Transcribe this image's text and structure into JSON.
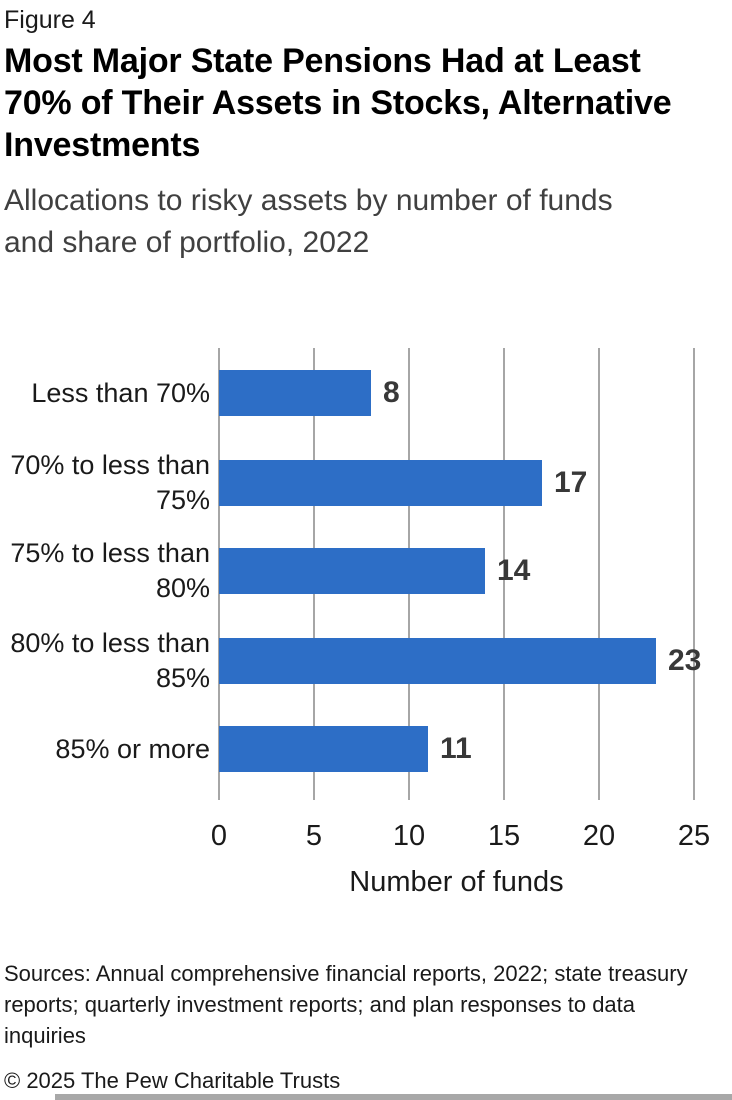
{
  "figure_label": "Figure 4",
  "header": {
    "title_lines": [
      "Most Major State Pensions Had at Least",
      "70% of Their Assets in Stocks, Alternative",
      "Investments"
    ],
    "subtitle_lines": [
      "Allocations to risky assets by number of funds",
      "and share of portfolio, 2022"
    ]
  },
  "chart_data": {
    "type": "bar",
    "orientation": "horizontal",
    "categories": [
      "Less than 70%",
      "70% to less than 75%",
      "75% to less than 80%",
      "80% to less than 85%",
      "85% or more"
    ],
    "values": [
      8,
      17,
      14,
      23,
      11
    ],
    "xlabel": "Number of funds",
    "xticks": [
      0,
      5,
      10,
      15,
      20,
      25
    ],
    "xlim": [
      0,
      25
    ],
    "grid": "vertical gridlines",
    "legend": "none",
    "bar_color": "#2D6EC6",
    "gridline_color": "#A6A6A6",
    "value_label_color": "#383838"
  },
  "footer": {
    "sources_lines": [
      "Sources: Annual comprehensive financial reports, 2022; state treasury",
      "reports; quarterly investment reports; and plan responses to data",
      "inquiries"
    ],
    "copyright": "© 2025 The Pew Charitable Trusts"
  }
}
